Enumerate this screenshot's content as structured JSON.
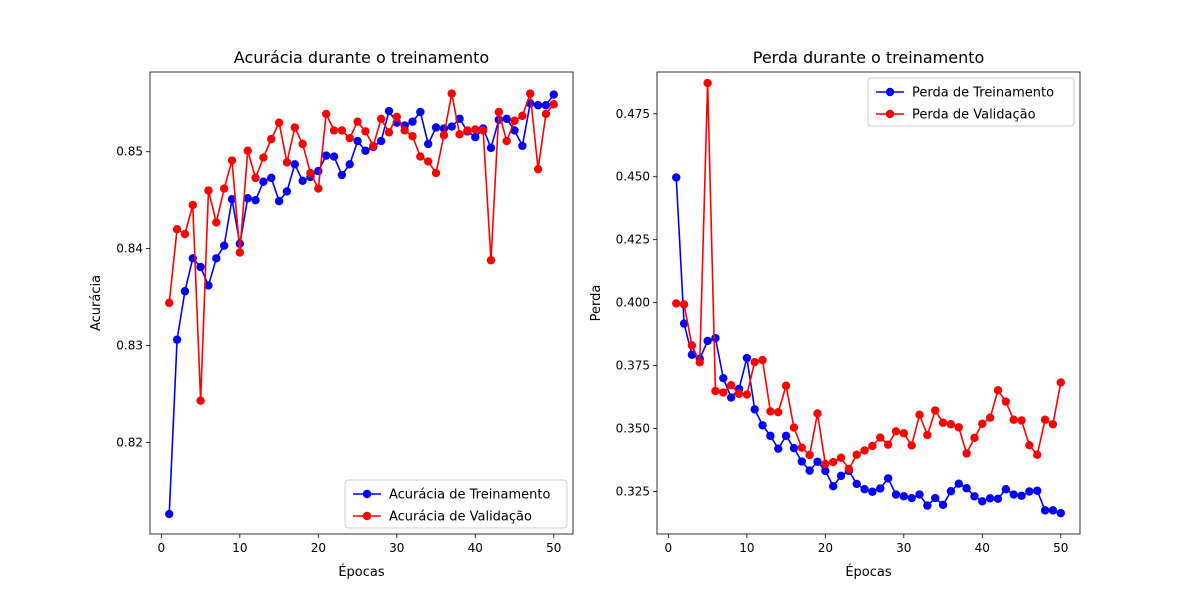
{
  "colors": {
    "train": "#0000ff",
    "val": "#ff0000",
    "axis": "#000000",
    "legend_border": "#cccccc"
  },
  "chart_data": [
    {
      "type": "line",
      "title": "Acurácia durante o treinamento",
      "xlabel": "Épocas",
      "ylabel": "Acurácia",
      "xlim": [
        -1.45,
        52.45
      ],
      "ylim": [
        0.81054,
        0.85823
      ],
      "xticks": [
        0,
        10,
        20,
        30,
        40,
        50
      ],
      "yticks": [
        0.82,
        0.83,
        0.84,
        0.85
      ],
      "xtick_labels": [
        "0",
        "10",
        "20",
        "30",
        "40",
        "50"
      ],
      "ytick_labels": [
        "0.82",
        "0.83",
        "0.84",
        "0.85"
      ],
      "legend_position": "lower-right",
      "x": [
        1,
        2,
        3,
        4,
        5,
        6,
        7,
        8,
        9,
        10,
        11,
        12,
        13,
        14,
        15,
        16,
        17,
        18,
        19,
        20,
        21,
        22,
        23,
        24,
        25,
        26,
        27,
        28,
        29,
        30,
        31,
        32,
        33,
        34,
        35,
        36,
        37,
        38,
        39,
        40,
        41,
        42,
        43,
        44,
        45,
        46,
        47,
        48,
        49,
        50
      ],
      "series": [
        {
          "name": "Acurácia de Treinamento",
          "color_key": "train",
          "values": [
            0.8126,
            0.8306,
            0.8356,
            0.839,
            0.8381,
            0.8362,
            0.839,
            0.8403,
            0.8451,
            0.8405,
            0.8452,
            0.845,
            0.8469,
            0.8473,
            0.8449,
            0.8459,
            0.8487,
            0.847,
            0.8474,
            0.848,
            0.8496,
            0.8495,
            0.8476,
            0.8487,
            0.8511,
            0.8501,
            0.8505,
            0.8511,
            0.8542,
            0.853,
            0.8527,
            0.8531,
            0.8541,
            0.8508,
            0.8525,
            0.8524,
            0.8526,
            0.8534,
            0.8521,
            0.8515,
            0.8524,
            0.8504,
            0.8533,
            0.8534,
            0.8522,
            0.8506,
            0.855,
            0.8548,
            0.8548,
            0.8559
          ]
        },
        {
          "name": "Acurácia de Validação",
          "color_key": "val",
          "values": [
            0.8344,
            0.842,
            0.8415,
            0.8445,
            0.8243,
            0.846,
            0.8427,
            0.8462,
            0.8491,
            0.8396,
            0.8501,
            0.8473,
            0.8494,
            0.8513,
            0.853,
            0.8489,
            0.8525,
            0.8508,
            0.8478,
            0.8462,
            0.8539,
            0.8522,
            0.8522,
            0.8514,
            0.8531,
            0.8521,
            0.8506,
            0.8534,
            0.852,
            0.8536,
            0.8522,
            0.8516,
            0.8495,
            0.849,
            0.8478,
            0.8517,
            0.856,
            0.8518,
            0.8522,
            0.8523,
            0.8522,
            0.8388,
            0.8541,
            0.8511,
            0.8532,
            0.8537,
            0.856,
            0.8482,
            0.8539,
            0.8549
          ]
        }
      ]
    },
    {
      "type": "line",
      "title": "Perda durante o treinamento",
      "xlabel": "Épocas",
      "ylabel": "Perda",
      "xlim": [
        -1.45,
        52.45
      ],
      "ylim": [
        0.30812,
        0.49159
      ],
      "xticks": [
        0,
        10,
        20,
        30,
        40,
        50
      ],
      "yticks": [
        0.325,
        0.35,
        0.375,
        0.4,
        0.425,
        0.45,
        0.475
      ],
      "xtick_labels": [
        "0",
        "10",
        "20",
        "30",
        "40",
        "50"
      ],
      "ytick_labels": [
        "0.325",
        "0.350",
        "0.375",
        "0.400",
        "0.425",
        "0.450",
        "0.475"
      ],
      "legend_position": "upper-right",
      "x": [
        1,
        2,
        3,
        4,
        5,
        6,
        7,
        8,
        9,
        10,
        11,
        12,
        13,
        14,
        15,
        16,
        17,
        18,
        19,
        20,
        21,
        22,
        23,
        24,
        25,
        26,
        27,
        28,
        29,
        30,
        31,
        32,
        33,
        34,
        35,
        36,
        37,
        38,
        39,
        40,
        41,
        42,
        43,
        44,
        45,
        46,
        47,
        48,
        49,
        50
      ],
      "series": [
        {
          "name": "Perda de Treinamento",
          "color_key": "train",
          "values": [
            0.4497,
            0.3917,
            0.3793,
            0.3777,
            0.3848,
            0.3859,
            0.37,
            0.3623,
            0.3657,
            0.378,
            0.3576,
            0.3513,
            0.3471,
            0.342,
            0.3471,
            0.3422,
            0.3369,
            0.3333,
            0.3368,
            0.3332,
            0.3271,
            0.3312,
            0.3332,
            0.328,
            0.3259,
            0.3249,
            0.3262,
            0.3302,
            0.3238,
            0.3231,
            0.3224,
            0.3238,
            0.3194,
            0.3224,
            0.3197,
            0.3251,
            0.3281,
            0.3263,
            0.3231,
            0.3211,
            0.3223,
            0.3221,
            0.3259,
            0.3238,
            0.3233,
            0.325,
            0.3253,
            0.3175,
            0.3175,
            0.3164
          ]
        },
        {
          "name": "Perda de Validação",
          "color_key": "val",
          "values": [
            0.3997,
            0.3993,
            0.383,
            0.3763,
            0.4872,
            0.3649,
            0.3643,
            0.3672,
            0.3638,
            0.3635,
            0.3764,
            0.3772,
            0.3568,
            0.3565,
            0.367,
            0.3504,
            0.3424,
            0.3395,
            0.356,
            0.3359,
            0.3367,
            0.3384,
            0.3339,
            0.3396,
            0.3413,
            0.3431,
            0.3464,
            0.3436,
            0.3489,
            0.3481,
            0.3433,
            0.3555,
            0.3474,
            0.3572,
            0.3523,
            0.3517,
            0.3505,
            0.3401,
            0.3463,
            0.3519,
            0.3543,
            0.3652,
            0.3607,
            0.3535,
            0.3532,
            0.3434,
            0.3396,
            0.3535,
            0.3517,
            0.3683
          ]
        }
      ]
    }
  ]
}
